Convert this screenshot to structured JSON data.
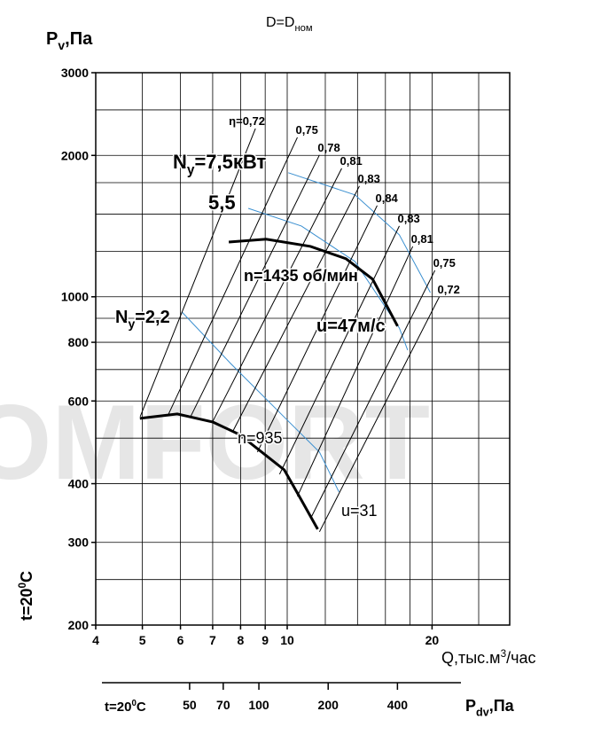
{
  "chart_data": {
    "type": "line",
    "title": {
      "main": "D=D",
      "sub": "ном"
    },
    "y_label": {
      "main": "P",
      "sub": "v",
      "rest": ",Па"
    },
    "x_label": {
      "main": "Q,тыс.м",
      "sup": "3",
      "rest": "/час"
    },
    "side_label": {
      "main": "t=20",
      "sup": "0",
      "rest": "C"
    },
    "watermark": "OMFORT",
    "log_x": true,
    "log_y": true,
    "grid": true,
    "xlim": [
      4,
      29
    ],
    "ylim": [
      200,
      3000
    ],
    "xticks": [
      4,
      5,
      6,
      7,
      8,
      9,
      10,
      20
    ],
    "yticks": [
      200,
      300,
      400,
      600,
      800,
      1000,
      2000,
      3000
    ],
    "xgrid": [
      4,
      5,
      6,
      7,
      8,
      9,
      10,
      12,
      14,
      16,
      18,
      20,
      25
    ],
    "ygrid": [
      250,
      300,
      400,
      500,
      600,
      700,
      800,
      900,
      1000,
      1250,
      1500,
      1750,
      2000,
      2500,
      3000
    ],
    "efficiency_color": "#000000",
    "efficiency_lines": [
      {
        "label": "η=0,72",
        "x": [
          4.95,
          8.59
        ],
        "y": [
          556,
          2282
        ]
      },
      {
        "label": "0,75",
        "x": [
          5.67,
          10.5
        ],
        "y": [
          563,
          2185
        ]
      },
      {
        "label": "0,78",
        "x": [
          6.3,
          11.67
        ],
        "y": [
          556,
          2004
        ]
      },
      {
        "label": "0,81",
        "x": [
          7.01,
          12.98
        ],
        "y": [
          544,
          1877
        ]
      },
      {
        "label": "0,83",
        "x": [
          7.7,
          14.13
        ],
        "y": [
          516,
          1721
        ]
      },
      {
        "label": "0,84",
        "x": [
          8.67,
          15.38
        ],
        "y": [
          467,
          1564
        ]
      },
      {
        "label": "0,83",
        "x": [
          9.64,
          17.1
        ],
        "y": [
          419,
          1415
        ]
      },
      {
        "label": "0,81",
        "x": [
          10.5,
          18.23
        ],
        "y": [
          376,
          1280
        ]
      },
      {
        "label": "0,75",
        "x": [
          11.18,
          20.27
        ],
        "y": [
          337,
          1138
        ]
      },
      {
        "label": "0,72",
        "x": [
          11.67,
          20.7
        ],
        "y": [
          316,
          999
        ]
      }
    ],
    "speed_color": "#000000",
    "speed_curves": [
      {
        "x": [
          7.56,
          9.04,
          11.18,
          13.25,
          15.05,
          16.96
        ],
        "y": [
          1308,
          1326,
          1280,
          1205,
          1090,
          866
        ]
      },
      {
        "x": [
          4.94,
          5.91,
          7.01,
          7.96,
          9.86,
          10.72,
          11.57
        ],
        "y": [
          551,
          563,
          541,
          509,
          428,
          368,
          320
        ]
      }
    ],
    "power_color": "#3a8fd0",
    "power_curves": [
      {
        "x": [
          10.05,
          13.83,
          17.1,
          19.84
        ],
        "y": [
          1837,
          1648,
          1355,
          1021
        ]
      },
      {
        "x": [
          8.3,
          10.7,
          13.83,
          17.1,
          17.8
        ],
        "y": [
          1543,
          1415,
          1189,
          858,
          770
        ]
      },
      {
        "x": [
          6.04,
          7.63,
          9.85,
          11.67,
          12.81
        ],
        "y": [
          928,
          721,
          555,
          467,
          384
        ]
      }
    ],
    "annotations": [
      {
        "main": "N",
        "sub": "y",
        "rest": "=7,5кВт"
      },
      {
        "main": "5,5"
      },
      {
        "main": "N",
        "sub": "y",
        "rest": "=2,2"
      },
      {
        "main": "n=1435 об/мин"
      },
      {
        "main": "u=47м/с"
      },
      {
        "main": "n=935"
      },
      {
        "main": "u=31"
      }
    ],
    "pdv_axis": {
      "start_label": {
        "main": "t=20",
        "sup": "0",
        "rest": "C"
      },
      "end_label": {
        "main": "P",
        "sub": "dv",
        "rest": ",Па"
      },
      "lim": [
        20.8,
        755
      ],
      "ticks": [
        50,
        70,
        100,
        200,
        400
      ]
    }
  }
}
